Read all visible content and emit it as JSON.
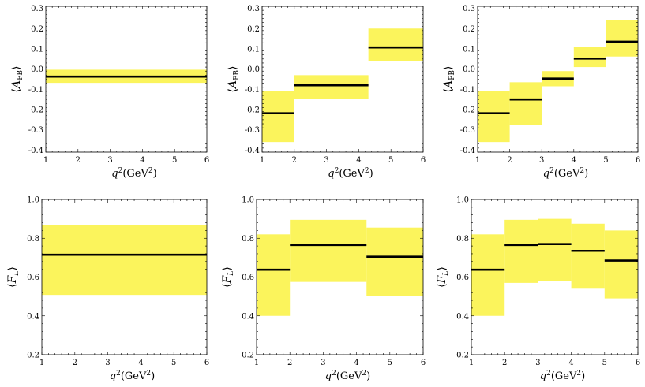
{
  "chart_data": [
    {
      "type": "step-band",
      "panel": "top-left",
      "ylabel": "⟨A_FB⟩",
      "xlabel": "q²(GeV²)",
      "xlim": [
        1,
        6
      ],
      "ylim": [
        -0.41,
        0.31
      ],
      "xticks": [
        1,
        2,
        3,
        4,
        5,
        6
      ],
      "yticks": [
        -0.4,
        -0.3,
        -0.2,
        -0.1,
        0.0,
        0.1,
        0.2,
        0.3
      ],
      "ytick_labels": [
        "-0.4",
        "-0.3",
        "-0.2",
        "-0.1",
        "0.0",
        "0.1",
        "0.2",
        "0.3"
      ],
      "bins": [
        {
          "x0": 1,
          "x1": 6,
          "central": -0.037,
          "low": -0.068,
          "high": -0.003
        }
      ]
    },
    {
      "type": "step-band",
      "panel": "top-middle",
      "ylabel": "⟨A_FB⟩",
      "xlabel": "q²(GeV²)",
      "xlim": [
        1,
        6
      ],
      "ylim": [
        -0.41,
        0.31
      ],
      "xticks": [
        1,
        2,
        3,
        4,
        5,
        6
      ],
      "yticks": [
        -0.4,
        -0.3,
        -0.2,
        -0.1,
        0.0,
        0.1,
        0.2,
        0.3
      ],
      "ytick_labels": [
        "-0.4",
        "-0.3",
        "-0.2",
        "-0.1",
        "0.0",
        "0.1",
        "0.2",
        "0.3"
      ],
      "bins": [
        {
          "x0": 1,
          "x1": 2,
          "central": -0.218,
          "low": -0.36,
          "high": -0.11
        },
        {
          "x0": 2,
          "x1": 4.3,
          "central": -0.08,
          "low": -0.148,
          "high": -0.03
        },
        {
          "x0": 4.3,
          "x1": 6,
          "central": 0.107,
          "low": 0.04,
          "high": 0.2
        }
      ]
    },
    {
      "type": "step-band",
      "panel": "top-right",
      "ylabel": "⟨A_FB⟩",
      "xlabel": "q²(GeV²)",
      "xlim": [
        1,
        6
      ],
      "ylim": [
        -0.41,
        0.31
      ],
      "xticks": [
        1,
        2,
        3,
        4,
        5,
        6
      ],
      "yticks": [
        -0.4,
        -0.3,
        -0.2,
        -0.1,
        0.0,
        0.1,
        0.2,
        0.3
      ],
      "ytick_labels": [
        "-0.4",
        "-0.3",
        "-0.2",
        "-0.1",
        "0.0",
        "0.1",
        "0.2",
        "0.3"
      ],
      "bins": [
        {
          "x0": 1,
          "x1": 2,
          "central": -0.218,
          "low": -0.36,
          "high": -0.11
        },
        {
          "x0": 2,
          "x1": 3,
          "central": -0.15,
          "low": -0.275,
          "high": -0.065
        },
        {
          "x0": 3,
          "x1": 4,
          "central": -0.047,
          "low": -0.085,
          "high": -0.01
        },
        {
          "x0": 4,
          "x1": 5,
          "central": 0.052,
          "low": 0.01,
          "high": 0.11
        },
        {
          "x0": 5,
          "x1": 6,
          "central": 0.135,
          "low": 0.062,
          "high": 0.24
        }
      ]
    },
    {
      "type": "step-band",
      "panel": "bottom-left",
      "ylabel": "⟨F_L⟩",
      "xlabel": "q²(GeV²)",
      "xlim": [
        1,
        6
      ],
      "ylim": [
        0.2,
        1.0
      ],
      "xticks": [
        1,
        2,
        3,
        4,
        5,
        6
      ],
      "yticks": [
        0.2,
        0.4,
        0.6,
        0.8,
        1.0
      ],
      "ytick_labels": [
        "0.2",
        "0.4",
        "0.6",
        "0.8",
        "1.0"
      ],
      "bins": [
        {
          "x0": 1,
          "x1": 6,
          "central": 0.715,
          "low": 0.508,
          "high": 0.87
        }
      ]
    },
    {
      "type": "step-band",
      "panel": "bottom-middle",
      "ylabel": "⟨F_L⟩",
      "xlabel": "q²(GeV²)",
      "xlim": [
        1,
        6
      ],
      "ylim": [
        0.2,
        1.0
      ],
      "xticks": [
        1,
        2,
        3,
        4,
        5,
        6
      ],
      "yticks": [
        0.2,
        0.4,
        0.6,
        0.8,
        1.0
      ],
      "ytick_labels": [
        "0.2",
        "0.4",
        "0.6",
        "0.8",
        "1.0"
      ],
      "bins": [
        {
          "x0": 1,
          "x1": 2,
          "central": 0.638,
          "low": 0.4,
          "high": 0.82
        },
        {
          "x0": 2,
          "x1": 4.3,
          "central": 0.765,
          "low": 0.575,
          "high": 0.895
        },
        {
          "x0": 4.3,
          "x1": 6,
          "central": 0.705,
          "low": 0.502,
          "high": 0.855
        }
      ]
    },
    {
      "type": "step-band",
      "panel": "bottom-right",
      "ylabel": "⟨F_L⟩",
      "xlabel": "q²(GeV²)",
      "xlim": [
        1,
        6
      ],
      "ylim": [
        0.2,
        1.0
      ],
      "xticks": [
        1,
        2,
        3,
        4,
        5,
        6
      ],
      "yticks": [
        0.2,
        0.4,
        0.6,
        0.8,
        1.0
      ],
      "ytick_labels": [
        "0.2",
        "0.4",
        "0.6",
        "0.8",
        "1.0"
      ],
      "bins": [
        {
          "x0": 1,
          "x1": 2,
          "central": 0.638,
          "low": 0.4,
          "high": 0.82
        },
        {
          "x0": 2,
          "x1": 3,
          "central": 0.765,
          "low": 0.57,
          "high": 0.895
        },
        {
          "x0": 3,
          "x1": 4,
          "central": 0.77,
          "low": 0.58,
          "high": 0.9
        },
        {
          "x0": 4,
          "x1": 5,
          "central": 0.735,
          "low": 0.54,
          "high": 0.875
        },
        {
          "x0": 5,
          "x1": 6,
          "central": 0.685,
          "low": 0.49,
          "high": 0.84
        }
      ]
    }
  ],
  "style": {
    "band_color": "#fbf45c",
    "line_color": "#000000",
    "frame_color": "#000000"
  }
}
